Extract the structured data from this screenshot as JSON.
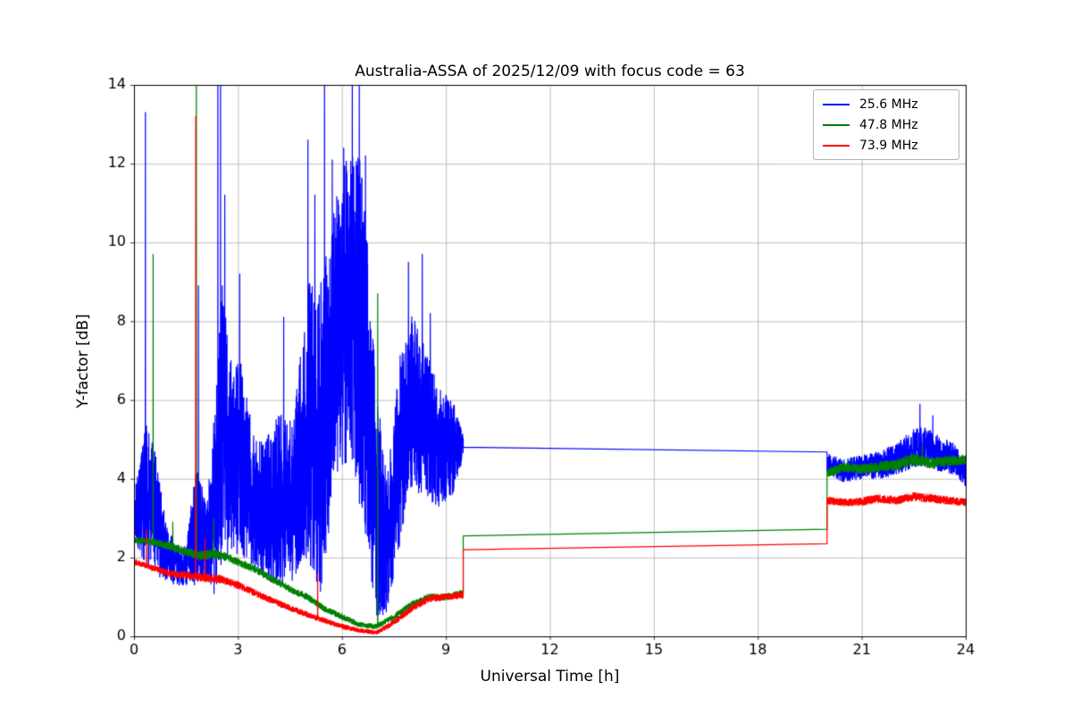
{
  "chart_data": {
    "type": "line",
    "title": "Australia-ASSA of 2025/12/09 with focus code = 63",
    "xlabel": "Universal Time [h]",
    "ylabel": "Y-factor [dB]",
    "xlim": [
      0,
      24
    ],
    "ylim": [
      0,
      14
    ],
    "x_ticks": [
      0,
      3,
      6,
      9,
      12,
      15,
      18,
      21,
      24
    ],
    "y_ticks": [
      0,
      2,
      4,
      6,
      8,
      10,
      12,
      14
    ],
    "grid": true,
    "legend_position": "upper right",
    "colors": {
      "grid": "#b0b0b0",
      "axis": "#000000",
      "background": "#ffffff"
    },
    "series": [
      {
        "name": "25.6 MHz",
        "color": "#0000ff",
        "seed": 7,
        "segments": [
          {
            "type": "noise",
            "x0": 0,
            "x1": 9.5,
            "dt": 0.003,
            "anchors": [
              [
                0,
                3.0,
                0.6
              ],
              [
                0.35,
                3.6,
                1.8
              ],
              [
                0.6,
                3.2,
                1.6
              ],
              [
                0.9,
                2.2,
                0.8
              ],
              [
                1.2,
                1.8,
                0.5
              ],
              [
                1.5,
                1.8,
                0.5
              ],
              [
                1.8,
                2.8,
                1.6
              ],
              [
                2.1,
                2.4,
                0.9
              ],
              [
                2.35,
                3.5,
                2.5
              ],
              [
                2.55,
                5.5,
                3.5
              ],
              [
                2.8,
                4.5,
                2.5
              ],
              [
                3.1,
                4.5,
                2.5
              ],
              [
                3.4,
                3.6,
                1.8
              ],
              [
                3.8,
                3.2,
                1.8
              ],
              [
                4.2,
                3.5,
                2.2
              ],
              [
                4.6,
                3.4,
                2.0
              ],
              [
                5.0,
                5.5,
                3.5
              ],
              [
                5.4,
                5.0,
                4.0
              ],
              [
                5.8,
                7.5,
                3.5
              ],
              [
                6.2,
                8.5,
                4.0
              ],
              [
                6.6,
                7.5,
                4.5
              ],
              [
                7.0,
                3.5,
                3.0
              ],
              [
                7.3,
                2.2,
                1.7
              ],
              [
                7.6,
                4.5,
                2.5
              ],
              [
                8.0,
                6.0,
                2.2
              ],
              [
                8.4,
                5.5,
                2.0
              ],
              [
                8.8,
                4.8,
                1.5
              ],
              [
                9.2,
                4.8,
                1.2
              ],
              [
                9.5,
                4.8,
                0.3
              ]
            ],
            "spikes": [
              [
                0.33,
                13.3
              ],
              [
                1.86,
                8.9
              ],
              [
                2.42,
                15.2
              ],
              [
                2.5,
                14.4
              ],
              [
                2.62,
                11.2
              ],
              [
                3.05,
                9.2
              ],
              [
                4.32,
                8.1
              ],
              [
                5.02,
                12.6
              ],
              [
                5.22,
                11.2
              ],
              [
                5.5,
                15.0
              ],
              [
                5.72,
                12.1
              ],
              [
                6.05,
                12.4
              ],
              [
                6.3,
                15.2
              ],
              [
                6.5,
                14.4
              ],
              [
                6.68,
                12.2
              ],
              [
                7.92,
                9.5
              ],
              [
                8.32,
                9.7
              ],
              [
                8.55,
                8.2
              ]
            ]
          },
          {
            "type": "line",
            "points": [
              [
                9.5,
                4.8
              ],
              [
                20,
                4.68
              ]
            ]
          },
          {
            "type": "noise",
            "x0": 20,
            "x1": 24,
            "dt": 0.004,
            "anchors": [
              [
                20,
                4.4,
                0.25
              ],
              [
                20.5,
                4.2,
                0.3
              ],
              [
                21,
                4.3,
                0.3
              ],
              [
                21.5,
                4.35,
                0.35
              ],
              [
                22,
                4.5,
                0.4
              ],
              [
                22.5,
                4.8,
                0.5
              ],
              [
                22.9,
                4.8,
                0.5
              ],
              [
                23.3,
                4.6,
                0.45
              ],
              [
                23.7,
                4.5,
                0.4
              ],
              [
                24,
                4.1,
                0.3
              ]
            ],
            "spikes": [
              [
                22.68,
                5.9
              ],
              [
                23.05,
                5.6
              ]
            ]
          }
        ]
      },
      {
        "name": "47.8 MHz",
        "color": "#008000",
        "seed": 13,
        "segments": [
          {
            "type": "noise",
            "x0": 0,
            "x1": 9.5,
            "dt": 0.004,
            "anchors": [
              [
                0,
                2.45,
                0.08
              ],
              [
                0.5,
                2.4,
                0.08
              ],
              [
                1.0,
                2.3,
                0.1
              ],
              [
                1.5,
                2.15,
                0.1
              ],
              [
                1.9,
                2.05,
                0.12
              ],
              [
                2.3,
                2.1,
                0.12
              ],
              [
                2.7,
                2.0,
                0.1
              ],
              [
                3.1,
                1.85,
                0.09
              ],
              [
                3.5,
                1.7,
                0.09
              ],
              [
                4.0,
                1.45,
                0.08
              ],
              [
                4.5,
                1.2,
                0.08
              ],
              [
                5.0,
                1.0,
                0.08
              ],
              [
                5.5,
                0.7,
                0.07
              ],
              [
                6.0,
                0.5,
                0.07
              ],
              [
                6.5,
                0.3,
                0.06
              ],
              [
                7.0,
                0.25,
                0.06
              ],
              [
                7.5,
                0.5,
                0.07
              ],
              [
                8.0,
                0.8,
                0.08
              ],
              [
                8.5,
                1.0,
                0.08
              ],
              [
                9.0,
                1.0,
                0.08
              ],
              [
                9.5,
                1.1,
                0.08
              ]
            ],
            "spikes": [
              [
                0.55,
                9.7
              ],
              [
                1.12,
                2.9
              ],
              [
                1.8,
                14.6
              ],
              [
                2.3,
                3.0
              ],
              [
                7.03,
                8.7
              ]
            ]
          },
          {
            "type": "line",
            "points": [
              [
                9.5,
                2.55
              ],
              [
                20,
                2.72
              ]
            ]
          },
          {
            "type": "noise",
            "x0": 20,
            "x1": 24,
            "dt": 0.004,
            "anchors": [
              [
                20,
                4.15,
                0.1
              ],
              [
                20.5,
                4.3,
                0.12
              ],
              [
                21,
                4.25,
                0.12
              ],
              [
                21.5,
                4.3,
                0.13
              ],
              [
                22,
                4.35,
                0.14
              ],
              [
                22.5,
                4.5,
                0.15
              ],
              [
                23,
                4.4,
                0.14
              ],
              [
                23.5,
                4.45,
                0.13
              ],
              [
                24,
                4.5,
                0.12
              ]
            ],
            "spikes": [
              [
                22.75,
                4.9
              ]
            ]
          }
        ]
      },
      {
        "name": "73.9 MHz",
        "color": "#ff0000",
        "seed": 29,
        "segments": [
          {
            "type": "noise",
            "x0": 0,
            "x1": 9.5,
            "dt": 0.004,
            "anchors": [
              [
                0,
                1.9,
                0.07
              ],
              [
                0.5,
                1.75,
                0.07
              ],
              [
                1.0,
                1.6,
                0.08
              ],
              [
                1.5,
                1.55,
                0.09
              ],
              [
                2.0,
                1.5,
                0.11
              ],
              [
                2.5,
                1.45,
                0.1
              ],
              [
                3.0,
                1.3,
                0.09
              ],
              [
                3.5,
                1.1,
                0.08
              ],
              [
                4.0,
                0.9,
                0.08
              ],
              [
                4.5,
                0.72,
                0.07
              ],
              [
                5.0,
                0.55,
                0.07
              ],
              [
                5.5,
                0.4,
                0.06
              ],
              [
                6.0,
                0.25,
                0.06
              ],
              [
                6.5,
                0.15,
                0.05
              ],
              [
                7.0,
                0.1,
                0.05
              ],
              [
                7.5,
                0.35,
                0.07
              ],
              [
                8.0,
                0.7,
                0.08
              ],
              [
                8.5,
                0.95,
                0.08
              ],
              [
                9.0,
                1.0,
                0.08
              ],
              [
                9.5,
                1.05,
                0.08
              ]
            ],
            "spikes": [
              [
                0.36,
                2.7
              ],
              [
                1.78,
                13.2
              ],
              [
                2.05,
                2.5
              ],
              [
                5.3,
                1.6
              ]
            ]
          },
          {
            "type": "line",
            "points": [
              [
                9.5,
                2.2
              ],
              [
                20,
                2.35
              ]
            ]
          },
          {
            "type": "noise",
            "x0": 20,
            "x1": 24,
            "dt": 0.004,
            "anchors": [
              [
                20,
                3.45,
                0.09
              ],
              [
                20.5,
                3.4,
                0.09
              ],
              [
                21,
                3.42,
                0.1
              ],
              [
                21.5,
                3.5,
                0.11
              ],
              [
                22,
                3.45,
                0.1
              ],
              [
                22.5,
                3.55,
                0.11
              ],
              [
                23,
                3.5,
                0.1
              ],
              [
                23.5,
                3.45,
                0.1
              ],
              [
                24,
                3.4,
                0.09
              ]
            ],
            "spikes": []
          }
        ]
      }
    ]
  }
}
